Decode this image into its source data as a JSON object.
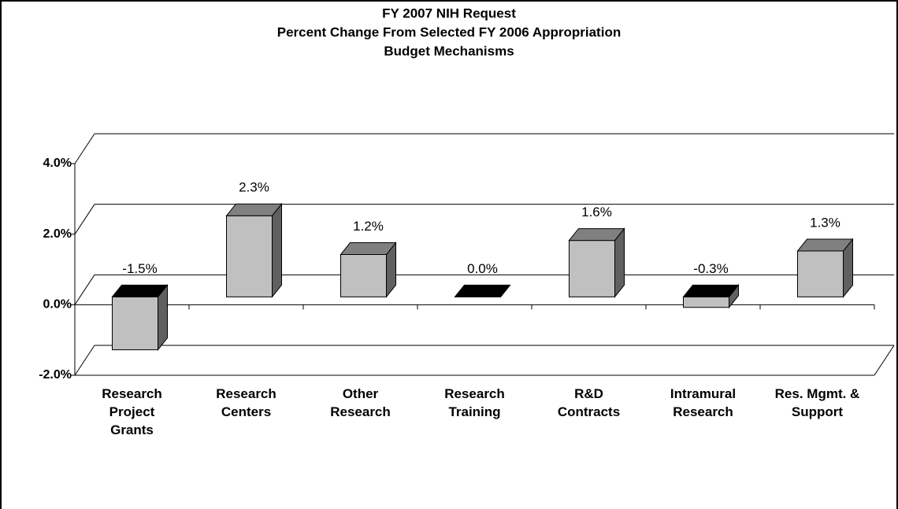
{
  "chart_data": {
    "type": "bar3d",
    "title": [
      "FY 2007 NIH Request",
      "Percent Change From Selected FY 2006 Appropriation",
      "Budget Mechanisms"
    ],
    "categories": [
      "Research\nProject\nGrants",
      "Research\nCenters",
      "Other\nResearch",
      "Research\nTraining",
      "R&D\nContracts",
      "Intramural\nResearch",
      "Res. Mgmt. &\nSupport"
    ],
    "values": [
      -1.5,
      2.3,
      1.2,
      0.0,
      1.6,
      -0.3,
      1.3
    ],
    "value_labels": [
      "-1.5%",
      "2.3%",
      "1.2%",
      "0.0%",
      "1.6%",
      "-0.3%",
      "1.3%"
    ],
    "color": "#c0c0c0",
    "ylim": [
      -2,
      4
    ],
    "yticks": [
      {
        "value": -2,
        "label": "-2.0%"
      },
      {
        "value": 0,
        "label": "0.0%"
      },
      {
        "value": 2,
        "label": "2.0%"
      },
      {
        "value": 4,
        "label": "4.0%"
      }
    ],
    "grid": true
  }
}
